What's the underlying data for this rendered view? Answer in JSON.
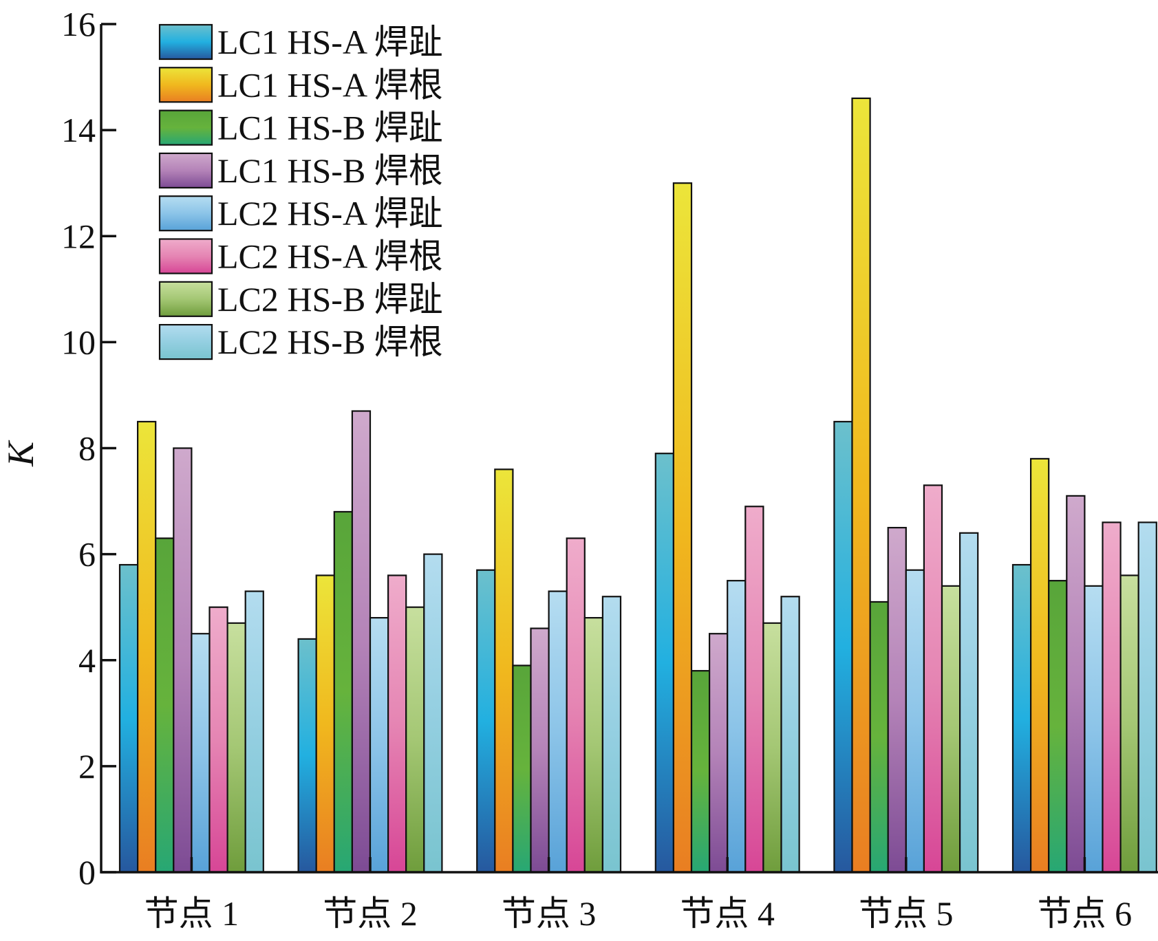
{
  "chart_data": {
    "type": "bar",
    "ylabel": "K",
    "xlabel": "",
    "ylim": [
      0,
      16
    ],
    "yticks": [
      "0",
      "2",
      "4",
      "6",
      "8",
      "10",
      "12",
      "14",
      "16"
    ],
    "grid": false,
    "legend_position": "top-left",
    "categories": [
      "节点 1",
      "节点 2",
      "节点 3",
      "节点 4",
      "节点 5",
      "节点 6"
    ],
    "series": [
      {
        "name": "LC1 HS-A 焊趾",
        "values": [
          5.8,
          4.4,
          5.7,
          7.9,
          8.5,
          5.8
        ],
        "colors": [
          "#6cc0cc",
          "#22b0e0",
          "#26589e"
        ]
      },
      {
        "name": "LC1 HS-A 焊根",
        "values": [
          8.5,
          5.6,
          7.6,
          13.0,
          14.6,
          7.8
        ],
        "colors": [
          "#ece53a",
          "#f0b81e",
          "#e97e22"
        ]
      },
      {
        "name": "LC1 HS-B 焊趾",
        "values": [
          6.3,
          6.8,
          3.9,
          3.8,
          5.1,
          5.5
        ],
        "colors": [
          "#58a53a",
          "#66b33c",
          "#27a774"
        ]
      },
      {
        "name": "LC1 HS-B 焊根",
        "values": [
          8.0,
          8.7,
          4.6,
          4.5,
          6.5,
          7.1
        ],
        "colors": [
          "#cfa9cc",
          "#b483b8",
          "#7d4b94"
        ]
      },
      {
        "name": "LC2 HS-A 焊趾",
        "values": [
          4.5,
          4.8,
          5.3,
          5.5,
          5.7,
          5.4
        ],
        "colors": [
          "#b6ddf1",
          "#8cc4e8",
          "#58a2d8"
        ]
      },
      {
        "name": "LC2 HS-A 焊根",
        "values": [
          5.0,
          5.6,
          6.3,
          6.9,
          7.3,
          6.6
        ],
        "colors": [
          "#efaccb",
          "#e585b3",
          "#d74696"
        ]
      },
      {
        "name": "LC2 HS-B 焊趾",
        "values": [
          4.7,
          5.0,
          4.8,
          4.7,
          5.4,
          5.6
        ],
        "colors": [
          "#c7df9e",
          "#a4c774",
          "#6f9d3c"
        ]
      },
      {
        "name": "LC2 HS-B 焊根",
        "values": [
          5.3,
          6.0,
          5.2,
          5.2,
          6.4,
          6.6
        ],
        "colors": [
          "#b3dcef",
          "#94cfe1",
          "#79c4cf"
        ]
      }
    ]
  }
}
